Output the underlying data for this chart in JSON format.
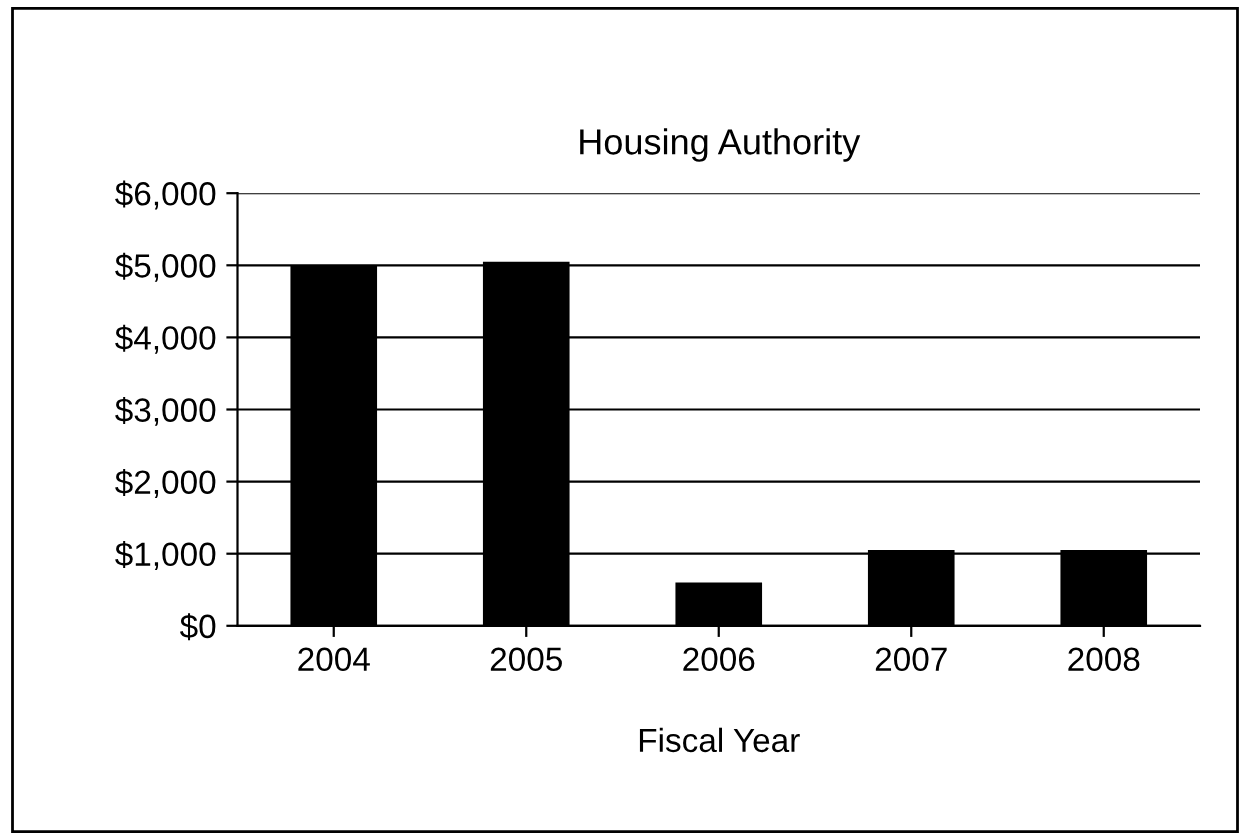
{
  "chart_data": {
    "type": "bar",
    "title": "Housing Authority",
    "xlabel": "Fiscal Year",
    "categories": [
      "2004",
      "2005",
      "2006",
      "2007",
      "2008"
    ],
    "values": [
      5000,
      5050,
      600,
      1050,
      1050
    ],
    "color": "#000000",
    "ylim": [
      0,
      6000
    ],
    "yticks": [
      {
        "value": 0,
        "label": "$0"
      },
      {
        "value": 1000,
        "label": "$1,000"
      },
      {
        "value": 2000,
        "label": "$2,000"
      },
      {
        "value": 3000,
        "label": "$3,000"
      },
      {
        "value": 4000,
        "label": "$4,000"
      },
      {
        "value": 5000,
        "label": "$5,000"
      },
      {
        "value": 6000,
        "label": "$6,000"
      }
    ],
    "grid": "y",
    "legend": false
  }
}
